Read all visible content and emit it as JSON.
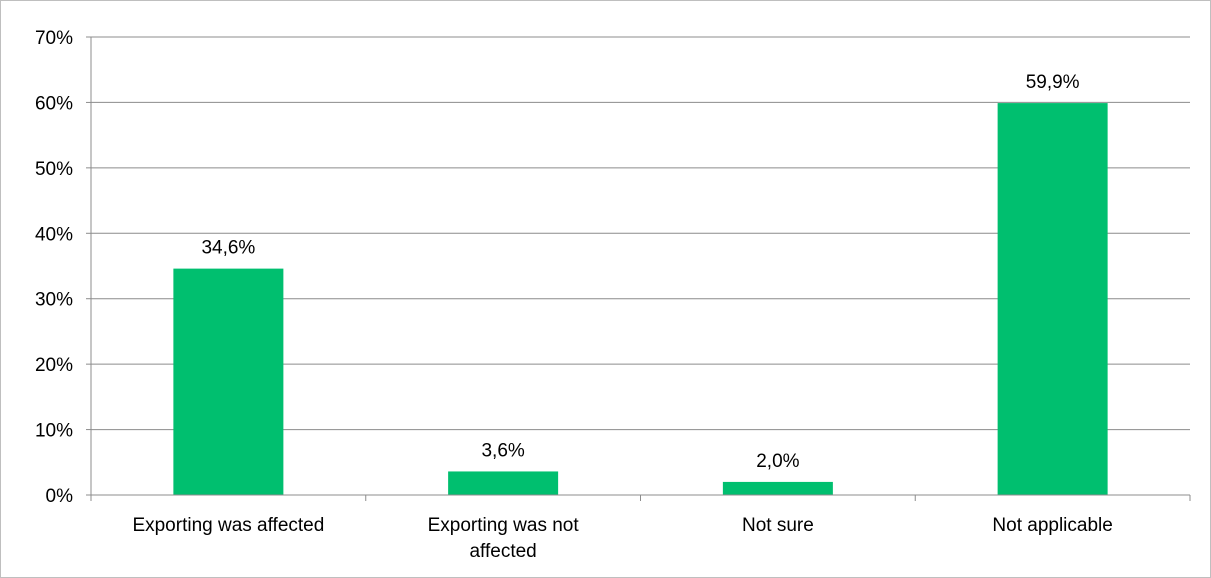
{
  "chart_data": {
    "type": "bar",
    "categories": [
      "Exporting was affected",
      "Exporting was not affected",
      "Not sure",
      "Not applicable"
    ],
    "category_lines": [
      [
        "Exporting was affected"
      ],
      [
        "Exporting was not",
        "affected"
      ],
      [
        "Not sure"
      ],
      [
        "Not applicable"
      ]
    ],
    "values": [
      34.6,
      3.6,
      2.0,
      59.9
    ],
    "data_labels": [
      "34,6%",
      "3,6%",
      "2,0%",
      "59,9%"
    ],
    "ylim": [
      0,
      70
    ],
    "yticks": [
      "0%",
      "10%",
      "20%",
      "30%",
      "40%",
      "50%",
      "60%",
      "70%"
    ],
    "grid": true,
    "legend": "none",
    "bar_color": "#00bf6f"
  }
}
